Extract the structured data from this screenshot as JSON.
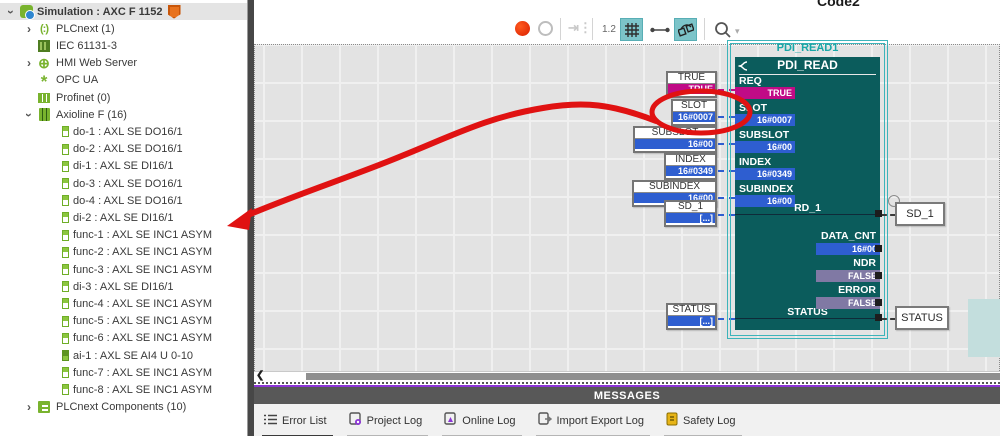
{
  "editor": {
    "title": "Code2",
    "zoom_level": "1.2"
  },
  "sidebar": {
    "items": [
      {
        "label": "Simulation : AXC F 1152",
        "level": 0,
        "icon": "simulation",
        "chevron": "down",
        "selected": true,
        "bold": true,
        "shield": true
      },
      {
        "label": "PLCnext (1)",
        "level": 1,
        "icon": "plcnext",
        "chevron": "right"
      },
      {
        "label": "IEC 61131-3",
        "level": 1,
        "icon": "iec",
        "chevron": null
      },
      {
        "label": "HMI Web Server",
        "level": 1,
        "icon": "hmi",
        "chevron": "right"
      },
      {
        "label": "OPC UA",
        "level": 1,
        "icon": "opc",
        "chevron": null
      },
      {
        "label": "Profinet (0)",
        "level": 1,
        "icon": "profinet",
        "chevron": null
      },
      {
        "label": "Axioline F (16)",
        "level": 1,
        "icon": "axioline",
        "chevron": "down"
      },
      {
        "label": "do-1 : AXL SE DO16/1",
        "level": 2,
        "icon": "module",
        "chevron": null
      },
      {
        "label": "do-2 : AXL SE DO16/1",
        "level": 2,
        "icon": "module",
        "chevron": null
      },
      {
        "label": "di-1 : AXL SE DI16/1",
        "level": 2,
        "icon": "module",
        "chevron": null
      },
      {
        "label": "do-3 : AXL SE DO16/1",
        "level": 2,
        "icon": "module",
        "chevron": null
      },
      {
        "label": "do-4 : AXL SE DO16/1",
        "level": 2,
        "icon": "module",
        "chevron": null
      },
      {
        "label": "di-2 : AXL SE DI16/1",
        "level": 2,
        "icon": "module",
        "chevron": null
      },
      {
        "label": "func-1 : AXL SE INC1 ASYM",
        "level": 2,
        "icon": "module",
        "chevron": null
      },
      {
        "label": "func-2 : AXL SE INC1 ASYM",
        "level": 2,
        "icon": "module",
        "chevron": null
      },
      {
        "label": "func-3 : AXL SE INC1 ASYM",
        "level": 2,
        "icon": "module",
        "chevron": null
      },
      {
        "label": "di-3 : AXL SE DI16/1",
        "level": 2,
        "icon": "module",
        "chevron": null
      },
      {
        "label": "func-4 : AXL SE INC1 ASYM",
        "level": 2,
        "icon": "module",
        "chevron": null
      },
      {
        "label": "func-5 : AXL SE INC1 ASYM",
        "level": 2,
        "icon": "module",
        "chevron": null
      },
      {
        "label": "func-6 : AXL SE INC1 ASYM",
        "level": 2,
        "icon": "module",
        "chevron": null
      },
      {
        "label": "ai-1 : AXL SE AI4 U 0-10",
        "level": 2,
        "icon": "module-ai",
        "chevron": null
      },
      {
        "label": "func-7 : AXL SE INC1 ASYM",
        "level": 2,
        "icon": "module",
        "chevron": null
      },
      {
        "label": "func-8 : AXL SE INC1 ASYM",
        "level": 2,
        "icon": "module",
        "chevron": null
      },
      {
        "label": "PLCnext Components (10)",
        "level": 1,
        "icon": "components",
        "chevron": "right"
      }
    ]
  },
  "block": {
    "instance_name": "PDI_READ1",
    "type_name": "PDI_READ",
    "inputs": [
      {
        "name": "REQ",
        "value": "TRUE",
        "color": "magenta"
      },
      {
        "name": "SLOT",
        "value": "16#0007",
        "color": "blue"
      },
      {
        "name": "SUBSLOT",
        "value": "16#00",
        "color": "blue"
      },
      {
        "name": "INDEX",
        "value": "16#0349",
        "color": "blue"
      },
      {
        "name": "SUBINDEX",
        "value": "16#00",
        "color": "blue"
      }
    ],
    "inout_top": "RD_1",
    "inout_bottom": "STATUS",
    "outputs": [
      {
        "name": "DATA_CNT",
        "value": "16#00",
        "color": "blue"
      },
      {
        "name": "NDR",
        "value": "FALSE",
        "color": "purple"
      },
      {
        "name": "ERROR",
        "value": "FALSE",
        "color": "purple"
      }
    ]
  },
  "input_boxes": [
    {
      "label": "TRUE",
      "value": "TRUE",
      "color": "magenta"
    },
    {
      "label": "SLOT",
      "value": "16#0007",
      "color": "blue"
    },
    {
      "label": "SUBSLOT",
      "value": "16#00",
      "color": "blue"
    },
    {
      "label": "INDEX",
      "value": "16#0349",
      "color": "blue"
    },
    {
      "label": "SUBINDEX",
      "value": "16#00",
      "color": "blue"
    },
    {
      "label": "SD_1",
      "value": "[...]",
      "color": "blue"
    },
    {
      "label": "STATUS",
      "value": "[...]",
      "color": "blue"
    }
  ],
  "output_boxes": [
    {
      "label": "SD_1"
    },
    {
      "label": "STATUS"
    }
  ],
  "messages": {
    "title": "MESSAGES",
    "tabs": [
      {
        "label": "Error List",
        "icon": "error-list-icon",
        "active": true
      },
      {
        "label": "Project Log",
        "icon": "project-log-icon",
        "active": false
      },
      {
        "label": "Online Log",
        "icon": "online-log-icon",
        "active": false
      },
      {
        "label": "Import Export Log",
        "icon": "import-export-log-icon",
        "active": false
      },
      {
        "label": "Safety Log",
        "icon": "safety-log-icon",
        "active": false
      }
    ],
    "search_placeholder": "Search"
  },
  "colors": {
    "block_body": "#0b5c5c",
    "selection_frame": "#3cb4ba",
    "value_blue": "#2e5ed0",
    "value_magenta": "#c00b86",
    "value_purple": "#8079a4",
    "annotation_red": "#e01212",
    "tree_green": "#79b32e",
    "shield_orange": "#e8731f",
    "messages_bar": "#585858",
    "purple_line": "#8c35d6"
  }
}
